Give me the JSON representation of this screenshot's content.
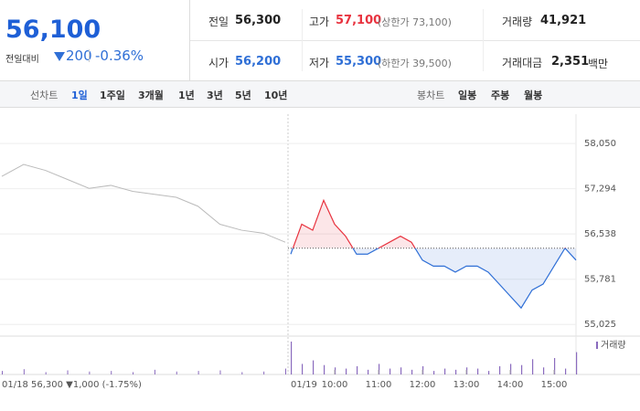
{
  "quote": {
    "price": "56,100",
    "change_label": "전일대비",
    "change": "200",
    "change_rate": "-0.36%"
  },
  "summary": {
    "rows": [
      [
        {
          "label": "전일",
          "value": "56,300"
        },
        {
          "label": "고가",
          "value": "57,100",
          "note": "(상한가 73,100)"
        },
        {
          "label": "거래량",
          "value": "41,921"
        }
      ],
      [
        {
          "label": "시가",
          "value": "56,200"
        },
        {
          "label": "저가",
          "value": "55,300",
          "note": "(하한가 39,500)"
        },
        {
          "label": "거래대금",
          "value": "2,351",
          "unit": "백만"
        }
      ]
    ]
  },
  "tabs": {
    "line_label": "선차트",
    "line_periods": [
      "1일",
      "1주일",
      "3개월",
      "1년",
      "3년",
      "5년",
      "10년"
    ],
    "candle_label": "봉차트",
    "candle_periods": [
      "일봉",
      "주봉",
      "월봉"
    ]
  },
  "chart_data": {
    "type": "line",
    "ylim": [
      54830,
      58540
    ],
    "yticks": [
      {
        "value": 58050,
        "label": "58,050"
      },
      {
        "value": 57294,
        "label": "57,294"
      },
      {
        "value": 56538,
        "label": "56,538"
      },
      {
        "value": 55781,
        "label": "55,781"
      },
      {
        "value": 55025,
        "label": "55,025"
      }
    ],
    "grid": true,
    "baseline": 56300,
    "prev_summary": "56,300 ▼1,000 (-1.75%)",
    "series": [
      {
        "name": "01/18",
        "color": "#bbbbbb",
        "values": [
          57500,
          57700,
          57600,
          57450,
          57300,
          57350,
          57250,
          57200,
          57150,
          57000,
          56700,
          56600,
          56550,
          56400
        ]
      },
      {
        "name": "01/19",
        "up_color": "#e8333f",
        "down_color": "#2f6fd6",
        "x": [
          "09:00",
          "09:15",
          "09:30",
          "09:45",
          "10:00",
          "10:15",
          "10:30",
          "10:45",
          "11:00",
          "11:15",
          "11:30",
          "11:45",
          "12:00",
          "12:15",
          "12:30",
          "12:45",
          "13:00",
          "13:15",
          "13:30",
          "13:45",
          "14:00",
          "14:15",
          "14:30",
          "14:45",
          "15:00",
          "15:15",
          "15:30"
        ],
        "values": [
          56200,
          56700,
          56600,
          57100,
          56700,
          56500,
          56200,
          56200,
          56300,
          56400,
          56500,
          56400,
          56100,
          56000,
          56000,
          55900,
          56000,
          56000,
          55900,
          55700,
          55500,
          55300,
          55600,
          55700,
          56000,
          56300,
          56100
        ]
      }
    ],
    "xticks": [
      "10:00",
      "11:00",
      "12:00",
      "13:00",
      "14:00",
      "15:00"
    ],
    "volume": {
      "name": "거래량",
      "color": "#8a6bbe",
      "prev": [
        300,
        450,
        200,
        350,
        250,
        300,
        200,
        400,
        250,
        300,
        350,
        200,
        250,
        500
      ],
      "today": [
        2800,
        900,
        1200,
        800,
        600,
        500,
        700,
        400,
        900,
        500,
        600,
        400,
        700,
        300,
        500,
        400,
        600,
        500,
        300,
        700,
        900,
        800,
        1300,
        600,
        1400,
        500,
        1900
      ]
    }
  }
}
